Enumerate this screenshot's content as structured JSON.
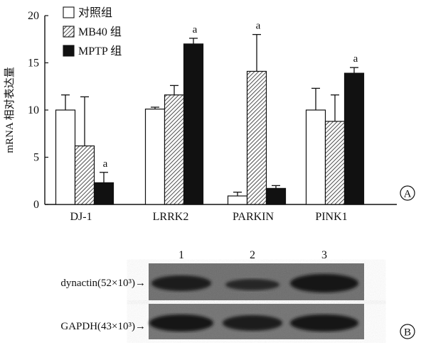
{
  "chart_data": {
    "type": "bar",
    "ylabel": "mRNA 相对表达量",
    "ylim": [
      0,
      20
    ],
    "yticks": [
      0,
      5,
      10,
      15,
      20
    ],
    "categories": [
      "DJ-1",
      "LRRK2",
      "PARKIN",
      "PINK1"
    ],
    "series": [
      {
        "name": "对照组",
        "values": [
          10.0,
          10.1,
          0.9,
          10.0
        ],
        "errors": [
          1.6,
          0.2,
          0.4,
          2.3
        ],
        "fill": "white"
      },
      {
        "name": "MB40 组",
        "values": [
          6.2,
          11.6,
          14.1,
          8.8
        ],
        "errors": [
          5.2,
          1.0,
          3.9,
          2.8
        ],
        "fill": "hatch"
      },
      {
        "name": "MPTP 组",
        "values": [
          2.3,
          17.0,
          1.7,
          13.9
        ],
        "errors": [
          1.1,
          0.6,
          0.3,
          0.6
        ],
        "fill": "black"
      }
    ],
    "annotations": [
      {
        "category": 0,
        "series": 2,
        "text": "a"
      },
      {
        "category": 1,
        "series": 2,
        "text": "a"
      },
      {
        "category": 2,
        "series": 1,
        "text": "a"
      },
      {
        "category": 3,
        "series": 2,
        "text": "a"
      }
    ],
    "legend_position": "top-left",
    "panel_label": "A"
  },
  "blot": {
    "lanes": [
      "1",
      "2",
      "3"
    ],
    "rows": [
      {
        "label": "dynactin(52×10³)→"
      },
      {
        "label": "GAPDH(43×10³)→"
      }
    ],
    "panel_label": "B"
  },
  "colors": {
    "ink": "#111111",
    "blot_bg": "#6a6a6a",
    "band": "#1a1a1a"
  }
}
